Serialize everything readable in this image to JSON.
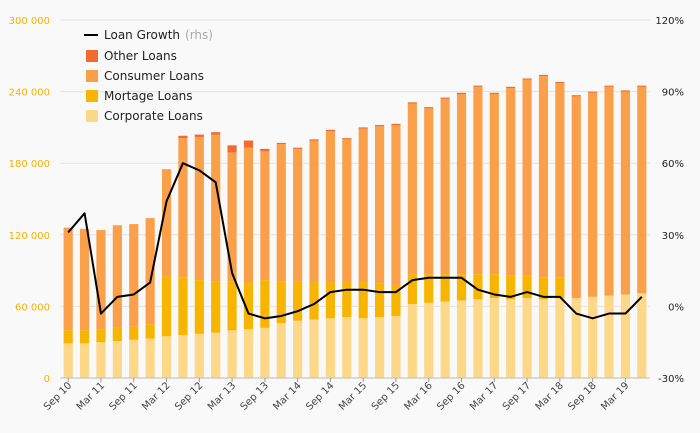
{
  "chart_data": {
    "type": "bar",
    "title": "",
    "xlabel": "",
    "ylabel": "",
    "ylim": [
      0,
      300000
    ],
    "y2lim": [
      -30,
      120
    ],
    "grid": true,
    "legend_position": "top-left",
    "y_ticks": [
      "0",
      "60 000",
      "120 000",
      "180 000",
      "240 000",
      "300 000"
    ],
    "y2_ticks": [
      "-30%",
      "0%",
      "30%",
      "60%",
      "90%",
      "120%"
    ],
    "x_ticks": [
      "Sep 10",
      "Mar 11",
      "Sep 11",
      "Mar 12",
      "Sep 12",
      "Mar 13",
      "Sep 13",
      "Mar 14",
      "Sep 14",
      "Mar 15",
      "Sep 15",
      "Mar 16",
      "Sep 16",
      "Mar 17",
      "Sep 17",
      "Mar 18",
      "Sep 18",
      "Mar 19"
    ],
    "line_legend": {
      "name": "Loan Growth",
      "note": "(rhs)"
    },
    "stack_legend": [
      "Other Loans",
      "Consumer Loans",
      "Mortage Loans",
      "Corporate Loans"
    ],
    "colors": {
      "corporate": "#fdd888",
      "mortgage": "#f7b500",
      "consumer": "#fba04a",
      "other": "#f26a2e",
      "line": "#000000",
      "grid": "#e3e3e3"
    },
    "stacked_series": [
      {
        "name": "Corporate Loans",
        "values": [
          29000,
          29000,
          30000,
          31000,
          32000,
          33000,
          35000,
          36000,
          37000,
          38000,
          40000,
          41000,
          42000,
          46000,
          48000,
          49000,
          50000,
          51000,
          50000,
          51000,
          52000,
          62000,
          63000,
          64000,
          65000,
          66000,
          67000,
          66000,
          67000,
          66000,
          67000,
          67000,
          68000,
          69000,
          70000,
          71000
        ]
      },
      {
        "name": "Mortage Loans",
        "values": [
          11000,
          11000,
          11000,
          11000,
          11000,
          12000,
          50000,
          48000,
          45000,
          43000,
          41000,
          39000,
          40000,
          35000,
          33000,
          31000,
          30000,
          29000,
          30000,
          28000,
          26000,
          25000,
          24000,
          23000,
          22000,
          21000,
          20000,
          20000,
          19000,
          18000,
          17000,
          0,
          0,
          0,
          0,
          0
        ]
      },
      {
        "name": "Consumer Loans",
        "values": [
          86000,
          85000,
          83000,
          86000,
          86000,
          89000,
          90000,
          117000,
          120000,
          123000,
          108000,
          113000,
          108000,
          115000,
          111000,
          119000,
          127000,
          120000,
          129000,
          132000,
          134000,
          143000,
          139000,
          147000,
          151000,
          157000,
          151000,
          157000,
          164000,
          169000,
          163000,
          169000,
          171000,
          175000,
          170000,
          173000
        ]
      },
      {
        "name": "Other Loans",
        "values": [
          0,
          0,
          0,
          0,
          0,
          0,
          0,
          2000,
          2000,
          2000,
          6000,
          6000,
          2000,
          1000,
          1000,
          1000,
          1000,
          1000,
          1000,
          1000,
          1000,
          1000,
          1000,
          1000,
          1000,
          1000,
          1000,
          1000,
          1000,
          1000,
          1000,
          1000,
          1000,
          1000,
          1000,
          1000
        ]
      }
    ],
    "line_series": {
      "name": "Loan Growth",
      "values": [
        31,
        39,
        -3,
        4,
        5,
        10,
        44,
        60,
        57,
        52,
        14,
        -3,
        -5,
        -4,
        -2,
        1,
        6,
        7,
        7,
        6,
        6,
        11,
        12,
        12,
        12,
        7,
        5,
        4,
        6,
        4,
        4,
        -3,
        -5,
        -3,
        -3,
        4
      ]
    }
  }
}
